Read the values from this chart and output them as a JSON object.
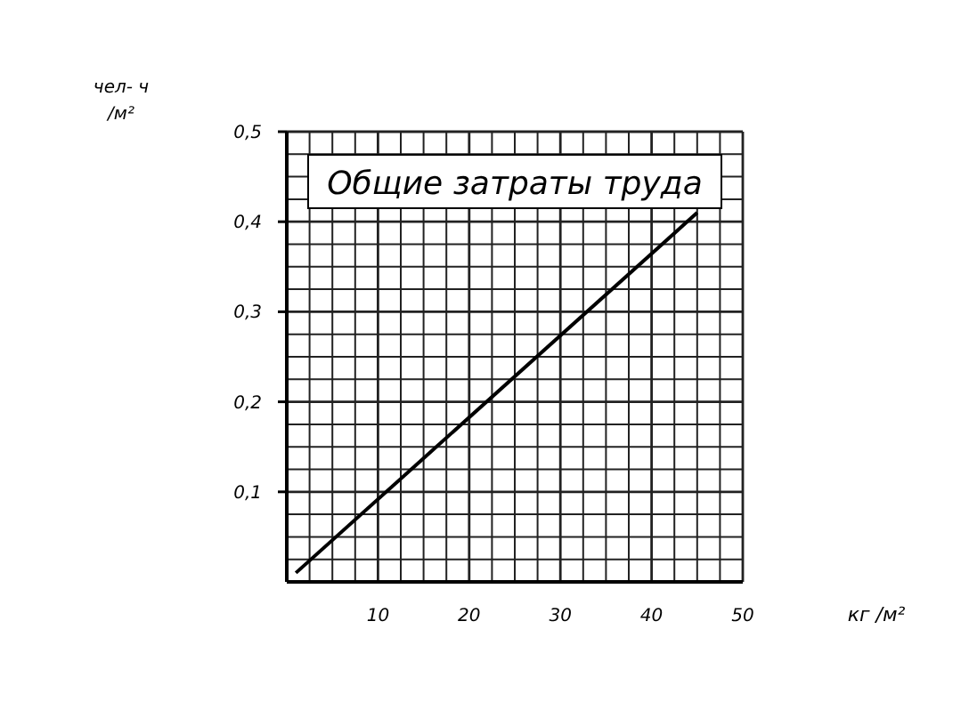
{
  "chart_data": {
    "type": "line",
    "title": "Общие затраты труда",
    "xlabel": "кг /м²",
    "ylabel": "чел- ч/м²",
    "x": [
      1,
      45
    ],
    "series": [
      {
        "color": "#000000",
        "values": [
          0.01,
          0.41
        ]
      }
    ],
    "xlim": [
      0,
      50
    ],
    "xticks": [
      {
        "value": 2.5,
        "label": null
      },
      {
        "value": 5,
        "label": null
      },
      {
        "value": 7.5,
        "label": null
      },
      10,
      {
        "value": 12.5,
        "label": null
      },
      {
        "value": 15,
        "label": null
      },
      {
        "value": 17.5,
        "label": null
      },
      20,
      {
        "value": 22.5,
        "label": null
      },
      {
        "value": 25,
        "label": null
      },
      {
        "value": 27.5,
        "label": null
      },
      30,
      {
        "value": 32.5,
        "label": null
      },
      {
        "value": 35,
        "label": null
      },
      {
        "value": 37.5,
        "label": null
      },
      40,
      {
        "value": 42.5,
        "label": null
      },
      {
        "value": 45,
        "label": null
      },
      {
        "value": 47.5,
        "label": null
      },
      50
    ],
    "ylim": [
      0,
      0.5
    ],
    "yticks": [
      {
        "value": 0.025,
        "label": null
      },
      {
        "value": 0.05,
        "label": null
      },
      {
        "value": 0.075,
        "label": null
      },
      {
        "value": 0.1,
        "label": "0,1"
      },
      {
        "value": 0.125,
        "label": null
      },
      {
        "value": 0.15,
        "label": null
      },
      {
        "value": 0.175,
        "label": null
      },
      {
        "value": 0.2,
        "label": "0,2"
      },
      {
        "value": 0.225,
        "label": null
      },
      {
        "value": 0.25,
        "label": null
      },
      {
        "value": 0.275,
        "label": null
      },
      {
        "value": 0.3,
        "label": "0,3"
      },
      {
        "value": 0.325,
        "label": null
      },
      {
        "value": 0.35,
        "label": null
      },
      {
        "value": 0.375,
        "label": null
      },
      {
        "value": 0.4,
        "label": "0,4"
      },
      {
        "value": 0.425,
        "label": null
      },
      {
        "value": 0.45,
        "label": null
      },
      {
        "value": 0.475,
        "label": null
      },
      {
        "value": 0.5,
        "label": "0,5"
      }
    ],
    "grid": true,
    "marker": "none",
    "line_style": "solid"
  }
}
